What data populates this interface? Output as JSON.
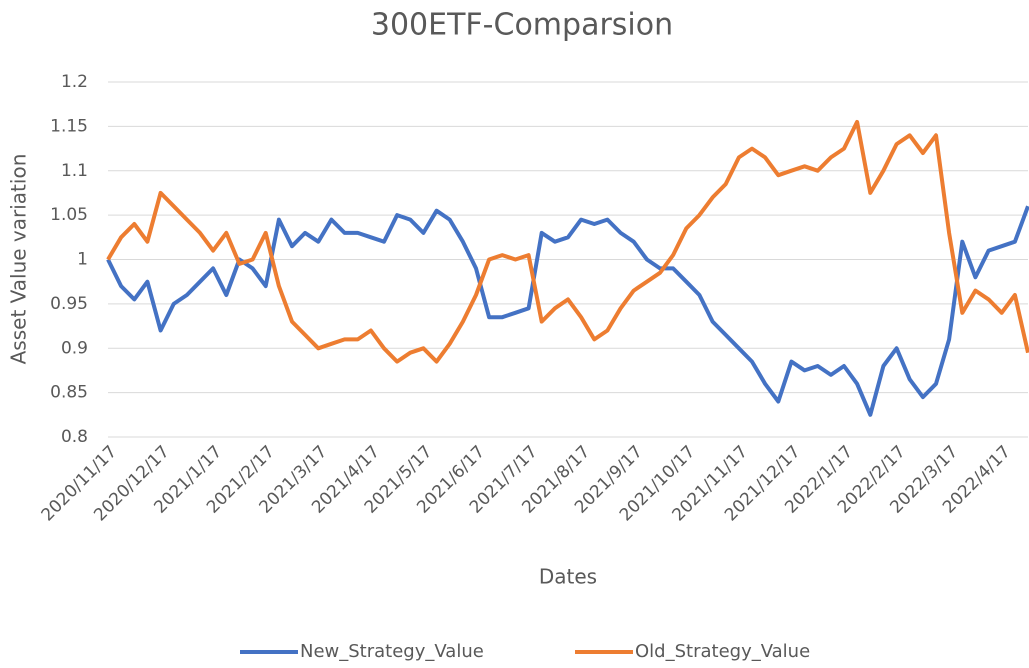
{
  "chart_data": {
    "type": "line",
    "title": "300ETF-Comparsion",
    "x_label": "Dates",
    "y_label": "Asset Value variation",
    "categories": [
      "2020/11/17",
      null,
      null,
      null,
      "2020/12/17",
      null,
      null,
      null,
      "2021/1/17",
      null,
      null,
      null,
      "2021/2/17",
      null,
      null,
      null,
      "2021/3/17",
      null,
      null,
      null,
      "2021/4/17",
      null,
      null,
      null,
      "2021/5/17",
      null,
      null,
      null,
      "2021/6/17",
      null,
      null,
      null,
      "2021/7/17",
      null,
      null,
      null,
      "2021/8/17",
      null,
      null,
      null,
      "2021/9/17",
      null,
      null,
      null,
      "2021/10/17",
      null,
      null,
      null,
      "2021/11/17",
      null,
      null,
      null,
      "2021/12/17",
      null,
      null,
      null,
      "2022/1/17",
      null,
      null,
      null,
      "2022/2/17",
      null,
      null,
      null,
      "2022/3/17",
      null,
      null,
      null,
      "2022/4/17",
      null,
      null
    ],
    "series": [
      {
        "name": "New_Strategy_Value",
        "color": "#4472c4",
        "values": [
          1.0,
          0.97,
          0.955,
          0.975,
          0.92,
          0.95,
          0.96,
          0.975,
          0.99,
          0.96,
          1.0,
          0.99,
          0.97,
          1.045,
          1.015,
          1.03,
          1.02,
          1.045,
          1.03,
          1.03,
          1.025,
          1.02,
          1.05,
          1.045,
          1.03,
          1.055,
          1.045,
          1.02,
          0.99,
          0.935,
          0.935,
          0.94,
          0.945,
          1.03,
          1.02,
          1.025,
          1.045,
          1.04,
          1.045,
          1.03,
          1.02,
          1.0,
          0.99,
          0.99,
          0.975,
          0.96,
          0.93,
          0.915,
          0.9,
          0.885,
          0.86,
          0.84,
          0.885,
          0.875,
          0.88,
          0.87,
          0.88,
          0.86,
          0.825,
          0.88,
          0.9,
          0.865,
          0.845,
          0.86,
          0.91,
          1.02,
          0.98,
          1.01,
          1.015,
          1.02,
          1.06
        ]
      },
      {
        "name": "Old_Strategy_Value",
        "color": "#ed7d31",
        "values": [
          1.0,
          1.025,
          1.04,
          1.02,
          1.075,
          1.06,
          1.045,
          1.03,
          1.01,
          1.03,
          0.995,
          1.0,
          1.03,
          0.97,
          0.93,
          0.915,
          0.9,
          0.905,
          0.91,
          0.91,
          0.92,
          0.9,
          0.885,
          0.895,
          0.9,
          0.885,
          0.905,
          0.93,
          0.96,
          1.0,
          1.005,
          1.0,
          1.005,
          0.93,
          0.945,
          0.955,
          0.935,
          0.91,
          0.92,
          0.945,
          0.965,
          0.975,
          0.985,
          1.005,
          1.035,
          1.05,
          1.07,
          1.085,
          1.115,
          1.125,
          1.115,
          1.095,
          1.1,
          1.105,
          1.1,
          1.115,
          1.125,
          1.155,
          1.075,
          1.1,
          1.13,
          1.14,
          1.12,
          1.14,
          1.03,
          0.94,
          0.965,
          0.955,
          0.94,
          0.96,
          0.895
        ]
      }
    ],
    "ylim": [
      0.8,
      1.2
    ],
    "yticks": [
      0.8,
      0.85,
      0.9,
      0.95,
      1,
      1.05,
      1.1,
      1.15,
      1.2
    ],
    "grid": true,
    "legend": "bottom"
  }
}
